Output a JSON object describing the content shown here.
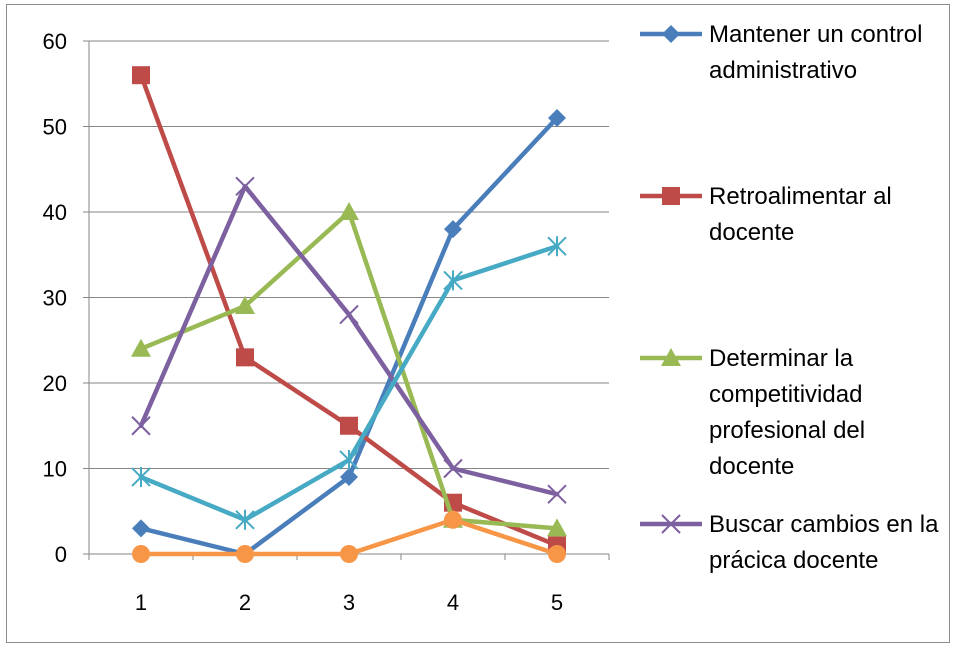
{
  "chart_data": {
    "type": "line",
    "title": "",
    "xlabel": "",
    "ylabel": "",
    "x": [
      1,
      2,
      3,
      4,
      5
    ],
    "ylim": [
      0,
      60
    ],
    "yticks": [
      0,
      10,
      20,
      30,
      40,
      50,
      60
    ],
    "grid": "horizontal",
    "legend_position": "right",
    "series": [
      {
        "name": "Mantener un control administrativo",
        "legend_lines": [
          "Mantener un control",
          "administrativo"
        ],
        "color": "#4a7ebb",
        "marker": "diamond",
        "values": [
          3,
          0,
          9,
          38,
          51
        ]
      },
      {
        "name": "Retroalimentar al docente",
        "legend_lines": [
          "Retroalimentar al",
          "docente"
        ],
        "color": "#be4b48",
        "marker": "square",
        "values": [
          56,
          23,
          15,
          6,
          1
        ]
      },
      {
        "name": "Determinar la competitividad profesional del docente",
        "legend_lines": [
          "Determinar la",
          "competitividad",
          "profesional del",
          "docente"
        ],
        "color": "#98b954",
        "marker": "triangle",
        "values": [
          24,
          29,
          40,
          4,
          3
        ]
      },
      {
        "name": "Buscar cambios en la prácica docente",
        "legend_lines": [
          "Buscar cambios en la",
          "prácica docente"
        ],
        "color": "#7d60a0",
        "marker": "x",
        "values": [
          15,
          43,
          28,
          10,
          7
        ]
      },
      {
        "name": "",
        "legend_lines": [],
        "color": "#46aac5",
        "marker": "star",
        "values": [
          9,
          4,
          11,
          32,
          36
        ]
      },
      {
        "name": "",
        "legend_lines": [],
        "color": "#f79646",
        "marker": "circle",
        "values": [
          0,
          0,
          0,
          4,
          0
        ]
      }
    ]
  }
}
